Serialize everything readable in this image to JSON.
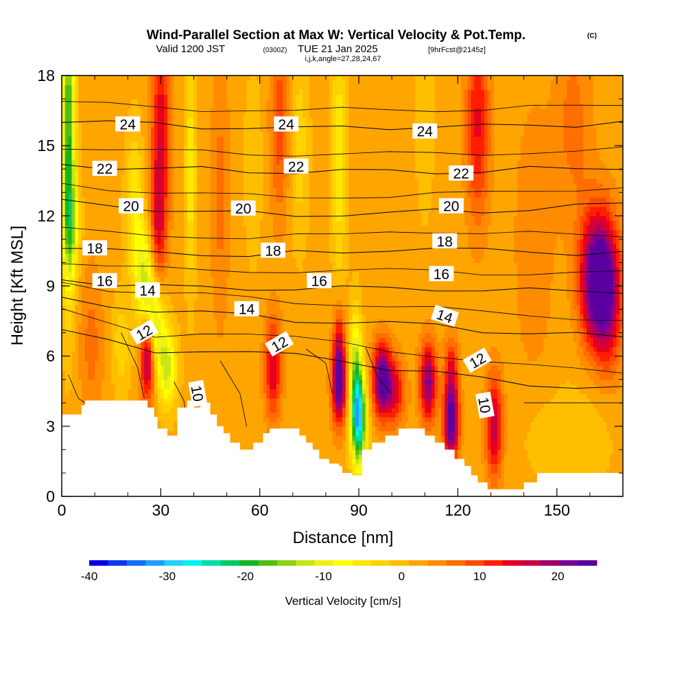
{
  "header": {
    "title": "Wind-Parallel Section at Max W: Vertical Velocity & Pot.Temp.",
    "copyright": "(C)",
    "valid_prefix": "Valid 1200 JST",
    "valid_utc": "(0300Z)",
    "valid_date": "TUE 21 Jan 2025",
    "forecast": "[9hrFcst@2145z]",
    "indices": "i,j,k,angle=27,28,24,67"
  },
  "chart_data": {
    "type": "heatmap",
    "xlabel": "Distance [nm]",
    "ylabel": "Height [Kft MSL]",
    "xlim": [
      0,
      170
    ],
    "ylim": [
      0,
      18
    ],
    "x_ticks": [
      0,
      30,
      60,
      90,
      120,
      150
    ],
    "y_ticks": [
      0,
      3,
      6,
      9,
      12,
      15,
      18
    ],
    "colorbar": {
      "label": "Vertical Velocity [cm/s]",
      "min": -40,
      "max": 25,
      "step": 2.5,
      "ticks": [
        -40,
        -30,
        -20,
        -10,
        0,
        10,
        20
      ],
      "colors": [
        "#0000e6",
        "#0a37f0",
        "#0f6ef5",
        "#1ea0fa",
        "#1ed2fa",
        "#00f0f0",
        "#00dcaa",
        "#00c864",
        "#14b41e",
        "#50be14",
        "#8cd214",
        "#c8e614",
        "#f0f014",
        "#ffff00",
        "#ffe600",
        "#ffd200",
        "#ffbe00",
        "#ffa500",
        "#ff8c00",
        "#ff6e00",
        "#ff4b00",
        "#ff1e00",
        "#e6001e",
        "#c80046",
        "#a0006e",
        "#780096",
        "#5a00a0"
      ]
    },
    "terrain": [
      [
        0,
        3.5
      ],
      [
        6,
        3.5
      ],
      [
        6,
        3.9
      ],
      [
        7,
        3.9
      ],
      [
        7,
        4.1
      ],
      [
        26,
        4.1
      ],
      [
        26,
        3.8
      ],
      [
        28,
        3.8
      ],
      [
        28,
        3.4
      ],
      [
        29,
        3.4
      ],
      [
        29,
        2.9
      ],
      [
        32,
        2.9
      ],
      [
        32,
        2.6
      ],
      [
        35,
        2.6
      ],
      [
        35,
        3.8
      ],
      [
        38,
        3.8
      ],
      [
        38,
        4.1
      ],
      [
        40,
        4.1
      ],
      [
        40,
        3.8
      ],
      [
        42,
        3.8
      ],
      [
        42,
        4.0
      ],
      [
        45,
        4.0
      ],
      [
        45,
        3.5
      ],
      [
        47,
        3.5
      ],
      [
        47,
        3.0
      ],
      [
        49,
        3.0
      ],
      [
        49,
        2.7
      ],
      [
        51,
        2.7
      ],
      [
        51,
        2.3
      ],
      [
        54,
        2.3
      ],
      [
        54,
        2.0
      ],
      [
        58,
        2.0
      ],
      [
        58,
        2.3
      ],
      [
        61,
        2.3
      ],
      [
        61,
        2.7
      ],
      [
        63,
        2.7
      ],
      [
        63,
        2.9
      ],
      [
        72,
        2.9
      ],
      [
        72,
        2.6
      ],
      [
        74,
        2.6
      ],
      [
        74,
        2.3
      ],
      [
        76,
        2.3
      ],
      [
        76,
        2.0
      ],
      [
        78,
        2.0
      ],
      [
        78,
        1.6
      ],
      [
        81,
        1.6
      ],
      [
        81,
        1.4
      ],
      [
        84,
        1.4
      ],
      [
        84,
        1.3
      ],
      [
        85,
        1.3
      ],
      [
        85,
        1.0
      ],
      [
        88,
        1.0
      ],
      [
        88,
        0.9
      ],
      [
        91,
        0.9
      ],
      [
        91,
        2.0
      ],
      [
        94,
        2.0
      ],
      [
        94,
        2.3
      ],
      [
        98,
        2.3
      ],
      [
        98,
        2.6
      ],
      [
        102,
        2.6
      ],
      [
        102,
        2.9
      ],
      [
        110,
        2.9
      ],
      [
        110,
        2.6
      ],
      [
        113,
        2.6
      ],
      [
        113,
        2.3
      ],
      [
        116,
        2.3
      ],
      [
        116,
        2.0
      ],
      [
        119,
        2.0
      ],
      [
        119,
        1.6
      ],
      [
        122,
        1.6
      ],
      [
        122,
        1.3
      ],
      [
        124,
        1.3
      ],
      [
        124,
        0.9
      ],
      [
        126,
        0.9
      ],
      [
        126,
        0.6
      ],
      [
        129,
        0.6
      ],
      [
        129,
        0.3
      ],
      [
        140,
        0.3
      ],
      [
        140,
        0.6
      ],
      [
        144,
        0.6
      ],
      [
        144,
        1.0
      ],
      [
        170,
        1.0
      ]
    ],
    "w_features": [
      {
        "x": 2,
        "y": 15.5,
        "sx": 1.4,
        "sy": 4.5,
        "w": -22
      },
      {
        "x": 3,
        "y": 11.5,
        "sx": 1.8,
        "sy": 1.5,
        "w": -10
      },
      {
        "x": 22,
        "y": 12.5,
        "sx": 1.8,
        "sy": 2.2,
        "w": -8
      },
      {
        "x": 25,
        "y": 9.5,
        "sx": 2.0,
        "sy": 1.6,
        "w": -12
      },
      {
        "x": 28,
        "y": 7.5,
        "sx": 2.2,
        "sy": 1.5,
        "w": -15
      },
      {
        "x": 32,
        "y": 5.5,
        "sx": 2.0,
        "sy": 1.2,
        "w": -14
      },
      {
        "x": 30,
        "y": 15.5,
        "sx": 2.0,
        "sy": 3.0,
        "w": 14
      },
      {
        "x": 29,
        "y": 11.0,
        "sx": 1.7,
        "sy": 1.8,
        "w": 10
      },
      {
        "x": 26,
        "y": 6.0,
        "sx": 1.5,
        "sy": 1.3,
        "w": 22
      },
      {
        "x": 39,
        "y": 14.0,
        "sx": 1.2,
        "sy": 3.5,
        "w": -8
      },
      {
        "x": 48,
        "y": 13.0,
        "sx": 2.0,
        "sy": 4.0,
        "w": 5
      },
      {
        "x": 58,
        "y": 14.0,
        "sx": 2.0,
        "sy": 3.0,
        "w": -3
      },
      {
        "x": 64,
        "y": 5.5,
        "sx": 1.8,
        "sy": 1.5,
        "w": 14
      },
      {
        "x": 66,
        "y": 16.0,
        "sx": 2.0,
        "sy": 3.0,
        "w": 8
      },
      {
        "x": 72,
        "y": 15.0,
        "sx": 2.0,
        "sy": 3.0,
        "w": -5
      },
      {
        "x": 84,
        "y": 4.8,
        "sx": 1.5,
        "sy": 1.2,
        "w": 24
      },
      {
        "x": 84,
        "y": 6.8,
        "sx": 1.2,
        "sy": 1.2,
        "w": 10
      },
      {
        "x": 90,
        "y": 3.3,
        "sx": 1.6,
        "sy": 1.4,
        "w": -30
      },
      {
        "x": 89,
        "y": 5.5,
        "sx": 1.3,
        "sy": 1.8,
        "w": -14
      },
      {
        "x": 84,
        "y": 14.5,
        "sx": 1.5,
        "sy": 4.0,
        "w": -8
      },
      {
        "x": 97,
        "y": 5.0,
        "sx": 2.0,
        "sy": 1.1,
        "w": 24
      },
      {
        "x": 101,
        "y": 4.5,
        "sx": 2.2,
        "sy": 1.0,
        "w": 12
      },
      {
        "x": 111,
        "y": 4.9,
        "sx": 1.8,
        "sy": 1.2,
        "w": 20
      },
      {
        "x": 118,
        "y": 3.2,
        "sx": 1.6,
        "sy": 1.2,
        "w": 24
      },
      {
        "x": 118,
        "y": 5.5,
        "sx": 1.5,
        "sy": 1.0,
        "w": 10
      },
      {
        "x": 126,
        "y": 16.0,
        "sx": 2.5,
        "sy": 3.0,
        "w": 12
      },
      {
        "x": 131,
        "y": 3.0,
        "sx": 1.8,
        "sy": 1.6,
        "w": 16
      },
      {
        "x": 162,
        "y": 9.3,
        "sx": 3.5,
        "sy": 2.0,
        "w": 26
      },
      {
        "x": 166,
        "y": 8.5,
        "sx": 3.0,
        "sy": 2.2,
        "w": 12
      },
      {
        "x": 160,
        "y": 3.0,
        "sx": 7.0,
        "sy": 2.0,
        "w": -2
      },
      {
        "x": 147,
        "y": 2.5,
        "sx": 7.0,
        "sy": 1.5,
        "w": -2
      },
      {
        "x": 110,
        "y": 16.0,
        "sx": 2.0,
        "sy": 3.0,
        "w": -3
      },
      {
        "x": 9,
        "y": 6.5,
        "sx": 2.5,
        "sy": 2.5,
        "w": 5
      },
      {
        "x": 18,
        "y": 6.5,
        "sx": 2.0,
        "sy": 1.5,
        "w": -5
      },
      {
        "x": 143,
        "y": 11.0,
        "sx": 4.0,
        "sy": 4.0,
        "w": 4
      },
      {
        "x": 155,
        "y": 16.0,
        "sx": 4.0,
        "sy": 3.0,
        "w": 5
      }
    ],
    "theta_levels": [
      {
        "value": 12,
        "h": [
          7.2,
          6.6,
          6.1,
          6.3,
          6.2,
          6.0,
          5.8,
          5.5,
          5.3,
          5.0,
          4.8,
          4.7,
          4.6
        ],
        "labels": [
          [
            25,
            7.0
          ],
          [
            66,
            6.5
          ],
          [
            126,
            5.8
          ]
        ]
      },
      {
        "value": 14,
        "h": [
          8.4,
          8.1,
          8.0,
          7.9,
          7.7,
          7.5,
          7.5,
          7.4,
          7.3,
          7.1,
          7.0,
          6.9,
          6.8
        ],
        "labels": [
          [
            26,
            8.8
          ],
          [
            56,
            8.0
          ],
          [
            116,
            7.7
          ]
        ]
      },
      {
        "value": 16,
        "h": [
          9.3,
          9.1,
          9.0,
          8.9,
          8.9,
          8.9,
          8.9,
          8.9,
          8.9,
          8.8,
          8.8,
          8.8,
          8.8
        ],
        "labels": [
          [
            13,
            9.2
          ],
          [
            78,
            9.2
          ],
          [
            115,
            9.5
          ]
        ]
      },
      {
        "value": 18,
        "h": [
          10.7,
          10.5,
          10.4,
          10.4,
          10.3,
          10.4,
          10.4,
          10.6,
          10.6,
          10.5,
          10.5,
          10.4,
          10.4
        ],
        "labels": [
          [
            10,
            10.6
          ],
          [
            64,
            10.5
          ],
          [
            116,
            10.9
          ]
        ]
      },
      {
        "value": 20,
        "h": [
          12.6,
          12.4,
          12.3,
          12.2,
          12.1,
          12.0,
          12.1,
          12.1,
          12.2,
          12.2,
          12.3,
          12.4,
          12.5
        ],
        "labels": [
          [
            21,
            12.4
          ],
          [
            55,
            12.3
          ],
          [
            118,
            12.4
          ]
        ]
      },
      {
        "value": 22,
        "h": [
          14.2,
          14.1,
          14.0,
          14.0,
          13.9,
          13.9,
          13.9,
          13.9,
          13.9,
          13.9,
          14.0,
          14.0,
          14.1
        ],
        "labels": [
          [
            13,
            14.0
          ],
          [
            71,
            14.1
          ],
          [
            121,
            13.8
          ]
        ]
      },
      {
        "value": 24,
        "h": [
          16.1,
          16.0,
          15.9,
          15.8,
          15.8,
          15.7,
          15.8,
          15.8,
          15.8,
          15.8,
          15.9,
          15.9,
          16.0
        ],
        "labels": [
          [
            20,
            15.9
          ],
          [
            68,
            15.9
          ],
          [
            110,
            15.6
          ]
        ]
      },
      {
        "value": 10,
        "h": null,
        "labels": [
          [
            41,
            4.4
          ],
          [
            128,
            3.9
          ]
        ]
      }
    ]
  }
}
